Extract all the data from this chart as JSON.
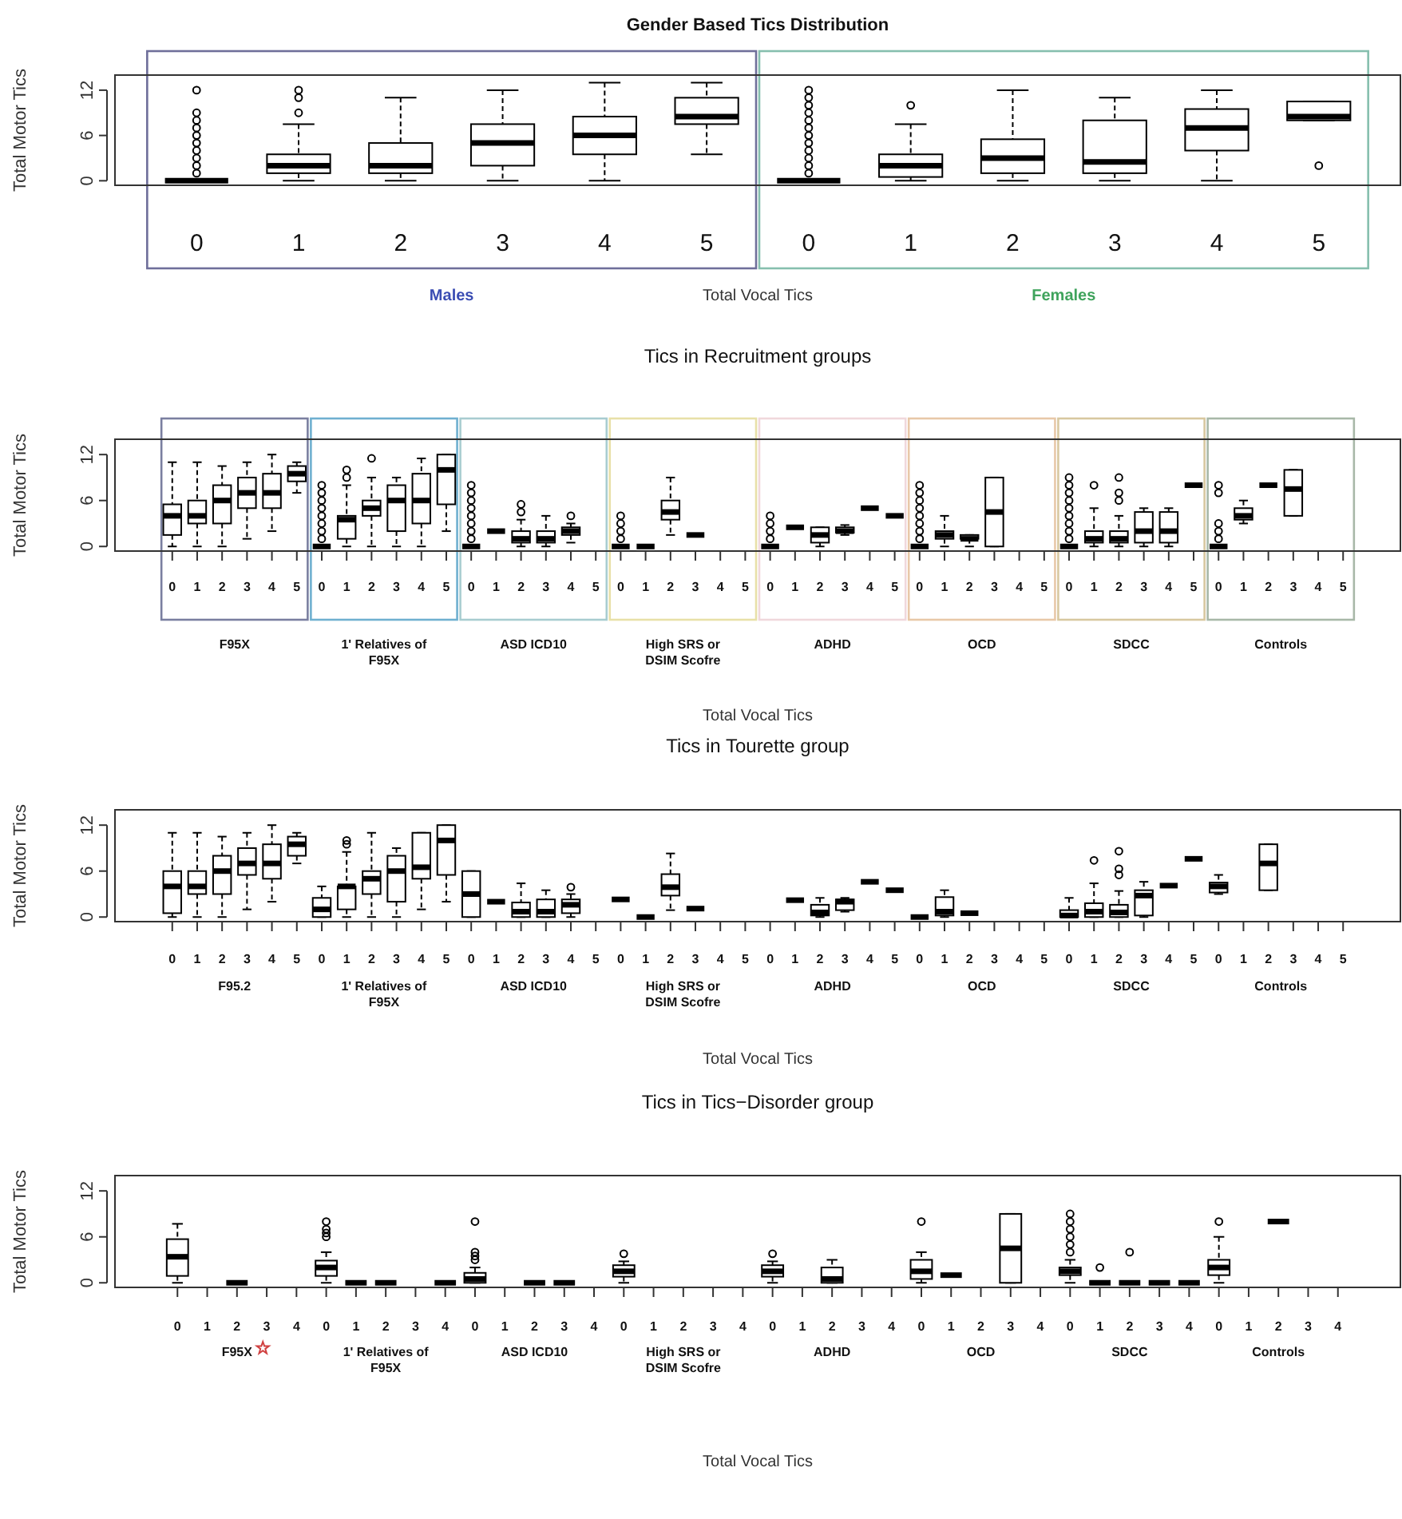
{
  "chart_data": [
    {
      "type": "box",
      "title": "Gender Based Tics Distribution",
      "xlabel": "Total Vocal Tics",
      "ylabel": "Total Motor Tics",
      "ylim": [
        -0.6,
        14
      ],
      "yticks": [
        0,
        6,
        12
      ],
      "categories": [
        "0",
        "1",
        "2",
        "3",
        "4",
        "5",
        "0",
        "1",
        "2",
        "3",
        "4",
        "5"
      ],
      "annotations": [
        "Males",
        "Females"
      ],
      "boxes": [
        {
          "low": 0,
          "q1": 0,
          "median": 0,
          "q3": 0,
          "high": 0,
          "outliers": [
            1,
            2,
            3,
            4,
            5,
            6,
            7,
            8,
            9,
            12
          ]
        },
        {
          "low": 0,
          "q1": 1,
          "median": 2,
          "q3": 3.5,
          "high": 7.5,
          "outliers": [
            9,
            11,
            12
          ]
        },
        {
          "low": 0,
          "q1": 1,
          "median": 2,
          "q3": 5,
          "high": 11
        },
        {
          "low": 0,
          "q1": 2,
          "median": 5,
          "q3": 7.5,
          "high": 12
        },
        {
          "low": 0,
          "q1": 3.5,
          "median": 6,
          "q3": 8.5,
          "high": 13
        },
        {
          "low": 3.5,
          "q1": 7.5,
          "median": 8.5,
          "q3": 11,
          "high": 13
        },
        {
          "low": 0,
          "q1": 0,
          "median": 0,
          "q3": 0,
          "high": 0,
          "outliers": [
            1,
            2,
            3,
            4,
            5,
            6,
            7,
            8,
            9,
            10,
            11,
            12
          ]
        },
        {
          "low": 0,
          "q1": 0.5,
          "median": 2,
          "q3": 3.5,
          "high": 7.5,
          "outliers": [
            10
          ]
        },
        {
          "low": 0,
          "q1": 1,
          "median": 3,
          "q3": 5.5,
          "high": 12
        },
        {
          "low": 0,
          "q1": 1,
          "median": 2.5,
          "q3": 8,
          "high": 11
        },
        {
          "low": 0,
          "q1": 4,
          "median": 7,
          "q3": 9.5,
          "high": 12
        },
        {
          "low": 8,
          "q1": 8,
          "median": 8.5,
          "q3": 10.5,
          "high": 10.5,
          "outliers": [
            2
          ]
        }
      ]
    },
    {
      "type": "box",
      "title": "Tics in Recruitment groups",
      "xlabel": "Total Vocal Tics",
      "ylabel": "Total Motor Tics",
      "ylim": [
        -0.6,
        14
      ],
      "yticks": [
        0,
        6,
        12
      ],
      "categories": [
        "0",
        "1",
        "2",
        "3",
        "4",
        "5",
        "0",
        "1",
        "2",
        "3",
        "4",
        "5",
        "0",
        "1",
        "2",
        "3",
        "4",
        "5",
        "0",
        "1",
        "2",
        "3",
        "4",
        "5",
        "0",
        "1",
        "2",
        "3",
        "4",
        "5",
        "0",
        "1",
        "2",
        "3",
        "4",
        "5",
        "0",
        "1",
        "2",
        "3",
        "4",
        "5",
        "0",
        "1",
        "2",
        "3",
        "4",
        "5"
      ],
      "annotations": [
        "F95X",
        "1' Relatives of F95X",
        "ASD ICD10",
        "High SRS or DSIM Scofre",
        "ADHD",
        "OCD",
        "SDCC",
        "Controls"
      ],
      "boxes": [
        {
          "low": 0,
          "q1": 1.5,
          "median": 4,
          "q3": 5.5,
          "high": 11
        },
        {
          "low": 0,
          "q1": 3,
          "median": 4,
          "q3": 6,
          "high": 11
        },
        {
          "low": 0,
          "q1": 3,
          "median": 6,
          "q3": 8,
          "high": 10.5
        },
        {
          "low": 1,
          "q1": 5,
          "median": 7,
          "q3": 9,
          "high": 11
        },
        {
          "low": 2,
          "q1": 5,
          "median": 7,
          "q3": 9.5,
          "high": 12
        },
        {
          "low": 7,
          "q1": 8.5,
          "median": 9.5,
          "q3": 10.5,
          "high": 11
        },
        {
          "low": 0,
          "q1": 0,
          "median": 0,
          "q3": 0,
          "high": 0,
          "outliers": [
            1,
            2,
            3,
            4,
            5,
            6,
            7,
            8
          ]
        },
        {
          "low": 0,
          "q1": 1,
          "median": 3.5,
          "q3": 4,
          "high": 8,
          "outliers": [
            9,
            10
          ]
        },
        {
          "low": 0,
          "q1": 4,
          "median": 5,
          "q3": 6,
          "high": 9,
          "outliers": [
            11.5
          ]
        },
        {
          "low": 0,
          "q1": 2,
          "median": 6,
          "q3": 8,
          "high": 9
        },
        {
          "low": 0,
          "q1": 3,
          "median": 6,
          "q3": 9.5,
          "high": 11.5
        },
        {
          "low": 2,
          "q1": 5.5,
          "median": 10,
          "q3": 12,
          "high": 12
        },
        {
          "low": 0,
          "q1": 0,
          "median": 0,
          "q3": 0,
          "high": 0,
          "outliers": [
            1,
            2,
            3,
            4,
            5,
            6,
            7,
            8
          ]
        },
        {
          "low": 2,
          "q1": 2,
          "median": 2,
          "q3": 2,
          "high": 2
        },
        {
          "low": 0,
          "q1": 0.5,
          "median": 1,
          "q3": 2,
          "high": 3.5,
          "outliers": [
            4.5,
            5.5
          ]
        },
        {
          "low": 0,
          "q1": 0.5,
          "median": 1,
          "q3": 2,
          "high": 4
        },
        {
          "low": 0.5,
          "q1": 1.5,
          "median": 2,
          "q3": 2.5,
          "high": 3,
          "outliers": [
            4
          ]
        },
        null,
        {
          "low": 0,
          "q1": 0,
          "median": 0,
          "q3": 0,
          "high": 0,
          "outliers": [
            1,
            2,
            3,
            4
          ]
        },
        {
          "low": 0,
          "q1": 0,
          "median": 0,
          "q3": 0,
          "high": 0
        },
        {
          "low": 1.5,
          "q1": 3.5,
          "median": 4.5,
          "q3": 6,
          "high": 9
        },
        {
          "low": 1.5,
          "q1": 1.5,
          "median": 1.5,
          "q3": 1.5,
          "high": 1.5
        },
        null,
        null,
        {
          "low": 0,
          "q1": 0,
          "median": 0,
          "q3": 0,
          "high": 0,
          "outliers": [
            1,
            2,
            3,
            4
          ]
        },
        {
          "low": 2.5,
          "q1": 2.5,
          "median": 2.5,
          "q3": 2.5,
          "high": 2.5
        },
        {
          "low": 0,
          "q1": 0.5,
          "median": 1.5,
          "q3": 2.5,
          "high": 2.5
        },
        {
          "low": 1.5,
          "q1": 1.8,
          "median": 2,
          "q3": 2.5,
          "high": 2.8
        },
        {
          "low": 5,
          "q1": 5,
          "median": 5,
          "q3": 5,
          "high": 5
        },
        {
          "low": 4,
          "q1": 4,
          "median": 4,
          "q3": 4,
          "high": 4
        },
        {
          "low": 0,
          "q1": 0,
          "median": 0,
          "q3": 0,
          "high": 0,
          "outliers": [
            1,
            2,
            3,
            4,
            5,
            6,
            7,
            8
          ]
        },
        {
          "low": 0,
          "q1": 1,
          "median": 1.5,
          "q3": 2,
          "high": 4
        },
        {
          "low": 0,
          "q1": 1,
          "median": 1,
          "q3": 1.5,
          "high": 1.5
        },
        {
          "low": 0,
          "q1": 0,
          "median": 4.5,
          "q3": 9,
          "high": 9
        },
        null,
        null,
        {
          "low": 0,
          "q1": 0,
          "median": 0,
          "q3": 0,
          "high": 0,
          "outliers": [
            1,
            2,
            3,
            4,
            5,
            6,
            7,
            8,
            9
          ]
        },
        {
          "low": 0,
          "q1": 0.5,
          "median": 1,
          "q3": 2,
          "high": 5,
          "outliers": [
            8
          ]
        },
        {
          "low": 0,
          "q1": 0.5,
          "median": 1,
          "q3": 2,
          "high": 4,
          "outliers": [
            6,
            7,
            9
          ]
        },
        {
          "low": 0,
          "q1": 0.5,
          "median": 2,
          "q3": 4.5,
          "high": 5
        },
        {
          "low": 0,
          "q1": 0.5,
          "median": 2,
          "q3": 4.5,
          "high": 5
        },
        {
          "low": 8,
          "q1": 8,
          "median": 8,
          "q3": 8,
          "high": 8
        },
        {
          "low": 0,
          "q1": 0,
          "median": 0,
          "q3": 0,
          "high": 0,
          "outliers": [
            1,
            2,
            3,
            7,
            8
          ]
        },
        {
          "low": 3,
          "q1": 3.5,
          "median": 4,
          "q3": 5,
          "high": 6
        },
        {
          "low": 8,
          "q1": 8,
          "median": 8,
          "q3": 8,
          "high": 8
        },
        {
          "low": 4,
          "q1": 4,
          "median": 7.5,
          "q3": 10,
          "high": 10
        },
        null,
        null
      ]
    },
    {
      "type": "box",
      "title": "Tics in Tourette group",
      "xlabel": "Total Vocal Tics",
      "ylabel": "Total Motor Tics",
      "ylim": [
        -0.6,
        14
      ],
      "yticks": [
        0,
        6,
        12
      ],
      "categories": [
        "0",
        "1",
        "2",
        "3",
        "4",
        "5",
        "0",
        "1",
        "2",
        "3",
        "4",
        "5",
        "0",
        "1",
        "2",
        "3",
        "4",
        "5",
        "0",
        "1",
        "2",
        "3",
        "4",
        "5",
        "0",
        "1",
        "2",
        "3",
        "4",
        "5",
        "0",
        "1",
        "2",
        "3",
        "4",
        "5",
        "0",
        "1",
        "2",
        "3",
        "4",
        "5",
        "0",
        "1",
        "2",
        "3",
        "4",
        "5"
      ],
      "annotations": [
        "F95.2",
        "1' Relatives of F95X",
        "ASD ICD10",
        "High SRS or DSIM Scofre",
        "ADHD",
        "OCD",
        "SDCC",
        "Controls"
      ],
      "boxes": [
        {
          "low": 0,
          "q1": 0.5,
          "median": 4,
          "q3": 6,
          "high": 11
        },
        {
          "low": 0,
          "q1": 3,
          "median": 4,
          "q3": 6,
          "high": 11
        },
        {
          "low": 0,
          "q1": 3,
          "median": 6,
          "q3": 8,
          "high": 10.5
        },
        {
          "low": 1,
          "q1": 5.5,
          "median": 7,
          "q3": 9,
          "high": 11
        },
        {
          "low": 2,
          "q1": 5,
          "median": 7,
          "q3": 9.5,
          "high": 12
        },
        {
          "low": 7,
          "q1": 8,
          "median": 9.5,
          "q3": 10.5,
          "high": 11
        },
        {
          "low": 0,
          "q1": 0,
          "median": 1,
          "q3": 2.5,
          "high": 4
        },
        {
          "low": 0,
          "q1": 1,
          "median": 4,
          "q3": 4,
          "high": 8.5,
          "outliers": [
            9.5,
            10
          ]
        },
        {
          "low": 0,
          "q1": 3,
          "median": 5,
          "q3": 6,
          "high": 11
        },
        {
          "low": 0,
          "q1": 2,
          "median": 6,
          "q3": 8,
          "high": 9
        },
        {
          "low": 1,
          "q1": 5,
          "median": 6.5,
          "q3": 11,
          "high": 11
        },
        {
          "low": 2,
          "q1": 5.5,
          "median": 10,
          "q3": 12,
          "high": 12
        },
        {
          "low": 0,
          "q1": 0,
          "median": 3,
          "q3": 6,
          "high": 6
        },
        {
          "low": 2,
          "q1": 2,
          "median": 2,
          "q3": 2,
          "high": 2
        },
        {
          "low": 0,
          "q1": 0,
          "median": 0.7,
          "q3": 1.9,
          "high": 4.4
        },
        {
          "low": 0,
          "q1": 0,
          "median": 0.7,
          "q3": 2.3,
          "high": 3.5
        },
        {
          "low": 0,
          "q1": 0.5,
          "median": 1.6,
          "q3": 2.3,
          "high": 3,
          "outliers": [
            3.9
          ]
        },
        null,
        {
          "low": 2.3,
          "q1": 2.3,
          "median": 2.3,
          "q3": 2.3,
          "high": 2.3
        },
        {
          "low": 0,
          "q1": 0,
          "median": 0,
          "q3": 0,
          "high": 0
        },
        {
          "low": 0.9,
          "q1": 2.8,
          "median": 3.9,
          "q3": 5.6,
          "high": 8.3
        },
        {
          "low": 1.1,
          "q1": 1.1,
          "median": 1.1,
          "q3": 1.1,
          "high": 1.1
        },
        null,
        null,
        null,
        {
          "low": 2.2,
          "q1": 2.2,
          "median": 2.2,
          "q3": 2.2,
          "high": 2.2
        },
        {
          "low": 0,
          "q1": 0.2,
          "median": 0.6,
          "q3": 1.6,
          "high": 2.5
        },
        {
          "low": 0.7,
          "q1": 0.9,
          "median": 2,
          "q3": 2.3,
          "high": 2.5
        },
        {
          "low": 4.6,
          "q1": 4.6,
          "median": 4.6,
          "q3": 4.6,
          "high": 4.6
        },
        {
          "low": 3.5,
          "q1": 3.5,
          "median": 3.5,
          "q3": 3.5,
          "high": 3.5
        },
        {
          "low": 0,
          "q1": 0,
          "median": 0,
          "q3": 0,
          "high": 0
        },
        {
          "low": 0,
          "q1": 0.2,
          "median": 0.7,
          "q3": 2.6,
          "high": 3.5
        },
        {
          "low": 0.5,
          "q1": 0.5,
          "median": 0.5,
          "q3": 0.5,
          "high": 0.5
        },
        null,
        null,
        null,
        {
          "low": 0,
          "q1": 0,
          "median": 0.2,
          "q3": 0.9,
          "high": 2.5
        },
        {
          "low": 0,
          "q1": 0,
          "median": 0.7,
          "q3": 1.8,
          "high": 4.4,
          "outliers": [
            7.4
          ]
        },
        {
          "low": 0,
          "q1": 0,
          "median": 0.6,
          "q3": 1.6,
          "high": 3.4,
          "outliers": [
            5.5,
            6.3,
            8.6
          ]
        },
        {
          "low": 0,
          "q1": 0.2,
          "median": 2.8,
          "q3": 3.5,
          "high": 4.6
        },
        {
          "low": 4.1,
          "q1": 4.1,
          "median": 4.1,
          "q3": 4.1,
          "high": 4.1
        },
        {
          "low": 7.6,
          "q1": 7.6,
          "median": 7.6,
          "q3": 7.6,
          "high": 7.6
        },
        {
          "low": 3,
          "q1": 3.2,
          "median": 4,
          "q3": 4.5,
          "high": 5.5
        },
        null,
        {
          "low": 3.5,
          "q1": 3.5,
          "median": 7,
          "q3": 9.5,
          "high": 9.5
        },
        null,
        null,
        null
      ]
    },
    {
      "type": "box",
      "title": "Tics in Tics−Disorder group",
      "xlabel": "Total Vocal Tics",
      "ylabel": "Total Motor Tics",
      "ylim": [
        -0.6,
        14
      ],
      "yticks": [
        0,
        6,
        12
      ],
      "categories": [
        "0",
        "1",
        "2",
        "3",
        "4",
        "0",
        "1",
        "2",
        "3",
        "4",
        "0",
        "1",
        "2",
        "3",
        "4",
        "0",
        "1",
        "2",
        "3",
        "4",
        "0",
        "1",
        "2",
        "3",
        "4",
        "0",
        "1",
        "2",
        "3",
        "4",
        "0",
        "1",
        "2",
        "3",
        "4",
        "0",
        "1",
        "2",
        "3",
        "4"
      ],
      "annotations": [
        "F95X",
        "1' Relatives of F95X",
        "ASD ICD10",
        "High SRS or DSIM Scofre",
        "ADHD",
        "OCD",
        "SDCC",
        "Controls"
      ],
      "boxes": [
        {
          "low": 0,
          "q1": 0.9,
          "median": 3.4,
          "q3": 5.7,
          "high": 7.7
        },
        null,
        {
          "low": 0,
          "q1": 0,
          "median": 0,
          "q3": 0,
          "high": 0
        },
        null,
        null,
        {
          "low": 0,
          "q1": 0.9,
          "median": 2,
          "q3": 2.9,
          "high": 4,
          "outliers": [
            6,
            6.5,
            7,
            8
          ]
        },
        {
          "low": 0,
          "q1": 0,
          "median": 0,
          "q3": 0,
          "high": 0
        },
        {
          "low": 0,
          "q1": 0,
          "median": 0,
          "q3": 0,
          "high": 0
        },
        null,
        {
          "low": 0,
          "q1": 0,
          "median": 0,
          "q3": 0,
          "high": 0
        },
        {
          "low": 0,
          "q1": 0,
          "median": 0.5,
          "q3": 1.3,
          "high": 2,
          "outliers": [
            3,
            3.5,
            4,
            8
          ]
        },
        null,
        {
          "low": 0,
          "q1": 0,
          "median": 0,
          "q3": 0,
          "high": 0
        },
        {
          "low": 0,
          "q1": 0,
          "median": 0,
          "q3": 0,
          "high": 0
        },
        null,
        {
          "low": 0,
          "q1": 0.8,
          "median": 1.5,
          "q3": 2.3,
          "high": 2.8,
          "outliers": [
            3.8
          ]
        },
        null,
        null,
        null,
        null,
        {
          "low": 0,
          "q1": 0.8,
          "median": 1.5,
          "q3": 2.3,
          "high": 2.8,
          "outliers": [
            3.8
          ]
        },
        null,
        {
          "low": 0,
          "q1": 0,
          "median": 0.5,
          "q3": 2,
          "high": 3
        },
        null,
        null,
        {
          "low": 0,
          "q1": 0.5,
          "median": 1.5,
          "q3": 3,
          "high": 4,
          "outliers": [
            8
          ]
        },
        {
          "low": 1,
          "q1": 1,
          "median": 1,
          "q3": 1,
          "high": 1
        },
        null,
        {
          "low": 0,
          "q1": 0,
          "median": 4.5,
          "q3": 9,
          "high": 9
        },
        null,
        {
          "low": 0,
          "q1": 1,
          "median": 1.5,
          "q3": 2,
          "high": 3,
          "outliers": [
            4,
            5,
            6,
            7,
            8,
            9
          ]
        },
        {
          "low": 0,
          "q1": 0,
          "median": 0,
          "q3": 0,
          "high": 0,
          "outliers": [
            2
          ]
        },
        {
          "low": 0,
          "q1": 0,
          "median": 0,
          "q3": 0,
          "high": 0,
          "outliers": [
            4
          ]
        },
        {
          "low": 0,
          "q1": 0,
          "median": 0,
          "q3": 0,
          "high": 0
        },
        {
          "low": 0,
          "q1": 0,
          "median": 0,
          "q3": 0,
          "high": 0
        },
        {
          "low": 0,
          "q1": 1,
          "median": 2,
          "q3": 3,
          "high": 6,
          "outliers": [
            8
          ]
        },
        null,
        {
          "low": 8,
          "q1": 8,
          "median": 8,
          "q3": 8,
          "high": 8
        },
        null,
        null
      ]
    }
  ]
}
